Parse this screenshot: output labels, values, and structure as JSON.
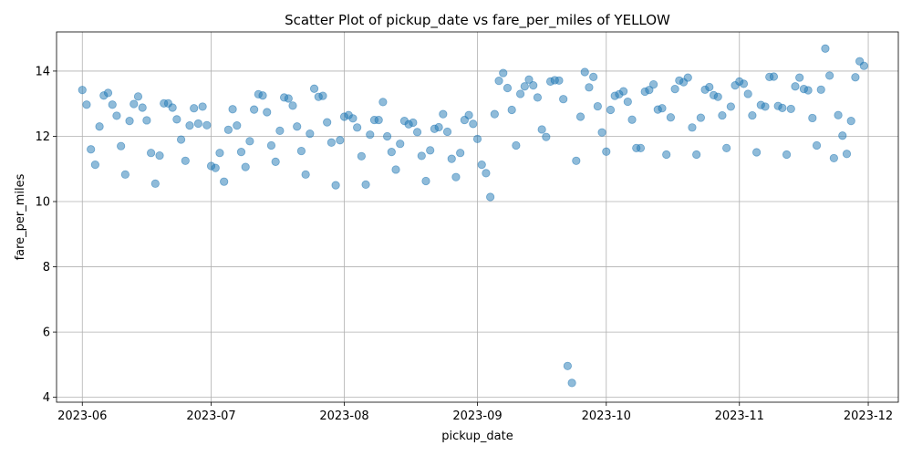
{
  "chart_data": {
    "type": "scatter",
    "title": "Scatter Plot of pickup_date vs fare_per_miles of YELLOW",
    "xlabel": "pickup_date",
    "ylabel": "fare_per_miles",
    "xlim": [
      "2023-05-26",
      "2023-12-08"
    ],
    "ylim": [
      3.85,
      15.2
    ],
    "grid": true,
    "x_ticks": [
      "2023-06-01",
      "2023-07-01",
      "2023-08-01",
      "2023-09-01",
      "2023-10-01",
      "2023-11-01",
      "2023-12-01"
    ],
    "x_tick_labels": [
      "2023-06",
      "2023-07",
      "2023-08",
      "2023-09",
      "2023-10",
      "2023-11",
      "2023-12"
    ],
    "y_ticks": [
      4,
      6,
      8,
      10,
      12,
      14
    ],
    "y_tick_labels": [
      "4",
      "6",
      "8",
      "10",
      "12",
      "14"
    ],
    "marker_color": "#1f77b4",
    "points": [
      [
        "2023-06-01",
        13.42
      ],
      [
        "2023-06-02",
        12.97
      ],
      [
        "2023-06-03",
        11.6
      ],
      [
        "2023-06-04",
        11.13
      ],
      [
        "2023-06-05",
        12.3
      ],
      [
        "2023-06-06",
        13.25
      ],
      [
        "2023-06-07",
        13.33
      ],
      [
        "2023-06-08",
        12.97
      ],
      [
        "2023-06-09",
        12.63
      ],
      [
        "2023-06-10",
        11.7
      ],
      [
        "2023-06-11",
        10.83
      ],
      [
        "2023-06-12",
        12.47
      ],
      [
        "2023-06-13",
        12.99
      ],
      [
        "2023-06-14",
        13.22
      ],
      [
        "2023-06-15",
        12.88
      ],
      [
        "2023-06-16",
        12.49
      ],
      [
        "2023-06-17",
        11.49
      ],
      [
        "2023-06-18",
        10.55
      ],
      [
        "2023-06-19",
        11.41
      ],
      [
        "2023-06-20",
        13.01
      ],
      [
        "2023-06-21",
        13.01
      ],
      [
        "2023-06-22",
        12.88
      ],
      [
        "2023-06-23",
        12.52
      ],
      [
        "2023-06-24",
        11.9
      ],
      [
        "2023-06-25",
        11.25
      ],
      [
        "2023-06-26",
        12.33
      ],
      [
        "2023-06-27",
        12.86
      ],
      [
        "2023-06-28",
        12.39
      ],
      [
        "2023-06-29",
        12.91
      ],
      [
        "2023-06-30",
        12.34
      ],
      [
        "2023-07-01",
        11.09
      ],
      [
        "2023-07-02",
        11.03
      ],
      [
        "2023-07-03",
        11.49
      ],
      [
        "2023-07-04",
        10.61
      ],
      [
        "2023-07-05",
        12.2
      ],
      [
        "2023-07-06",
        12.83
      ],
      [
        "2023-07-07",
        12.33
      ],
      [
        "2023-07-08",
        11.52
      ],
      [
        "2023-07-09",
        11.06
      ],
      [
        "2023-07-10",
        11.85
      ],
      [
        "2023-07-11",
        12.82
      ],
      [
        "2023-07-12",
        13.29
      ],
      [
        "2023-07-13",
        13.25
      ],
      [
        "2023-07-14",
        12.74
      ],
      [
        "2023-07-15",
        11.72
      ],
      [
        "2023-07-16",
        11.22
      ],
      [
        "2023-07-17",
        12.17
      ],
      [
        "2023-07-18",
        13.19
      ],
      [
        "2023-07-19",
        13.16
      ],
      [
        "2023-07-20",
        12.94
      ],
      [
        "2023-07-21",
        12.3
      ],
      [
        "2023-07-22",
        11.55
      ],
      [
        "2023-07-23",
        10.83
      ],
      [
        "2023-07-24",
        12.08
      ],
      [
        "2023-07-25",
        13.46
      ],
      [
        "2023-07-26",
        13.21
      ],
      [
        "2023-07-27",
        13.24
      ],
      [
        "2023-07-28",
        12.43
      ],
      [
        "2023-07-29",
        11.81
      ],
      [
        "2023-07-30",
        10.5
      ],
      [
        "2023-07-31",
        11.88
      ],
      [
        "2023-08-01",
        12.6
      ],
      [
        "2023-08-02",
        12.65
      ],
      [
        "2023-08-03",
        12.55
      ],
      [
        "2023-08-04",
        12.27
      ],
      [
        "2023-08-05",
        11.39
      ],
      [
        "2023-08-06",
        10.52
      ],
      [
        "2023-08-07",
        12.05
      ],
      [
        "2023-08-08",
        12.5
      ],
      [
        "2023-08-09",
        12.5
      ],
      [
        "2023-08-10",
        13.05
      ],
      [
        "2023-08-11",
        12.0
      ],
      [
        "2023-08-12",
        11.52
      ],
      [
        "2023-08-13",
        10.98
      ],
      [
        "2023-08-14",
        11.77
      ],
      [
        "2023-08-15",
        12.47
      ],
      [
        "2023-08-16",
        12.37
      ],
      [
        "2023-08-17",
        12.42
      ],
      [
        "2023-08-18",
        12.13
      ],
      [
        "2023-08-19",
        11.4
      ],
      [
        "2023-08-20",
        10.63
      ],
      [
        "2023-08-21",
        11.57
      ],
      [
        "2023-08-22",
        12.23
      ],
      [
        "2023-08-23",
        12.28
      ],
      [
        "2023-08-24",
        12.68
      ],
      [
        "2023-08-25",
        12.14
      ],
      [
        "2023-08-26",
        11.31
      ],
      [
        "2023-08-27",
        10.75
      ],
      [
        "2023-08-28",
        11.49
      ],
      [
        "2023-08-29",
        12.5
      ],
      [
        "2023-08-30",
        12.65
      ],
      [
        "2023-08-31",
        12.38
      ],
      [
        "2023-09-01",
        11.92
      ],
      [
        "2023-09-02",
        11.13
      ],
      [
        "2023-09-03",
        10.87
      ],
      [
        "2023-09-04",
        10.14
      ],
      [
        "2023-09-05",
        12.68
      ],
      [
        "2023-09-06",
        13.7
      ],
      [
        "2023-09-07",
        13.94
      ],
      [
        "2023-09-08",
        13.48
      ],
      [
        "2023-09-09",
        12.81
      ],
      [
        "2023-09-10",
        11.72
      ],
      [
        "2023-09-11",
        13.3
      ],
      [
        "2023-09-12",
        13.53
      ],
      [
        "2023-09-13",
        13.74
      ],
      [
        "2023-09-14",
        13.56
      ],
      [
        "2023-09-15",
        13.19
      ],
      [
        "2023-09-16",
        12.21
      ],
      [
        "2023-09-17",
        11.98
      ],
      [
        "2023-09-18",
        13.68
      ],
      [
        "2023-09-19",
        13.72
      ],
      [
        "2023-09-20",
        13.71
      ],
      [
        "2023-09-21",
        13.14
      ],
      [
        "2023-09-22",
        4.96
      ],
      [
        "2023-09-23",
        4.44
      ],
      [
        "2023-09-24",
        11.25
      ],
      [
        "2023-09-25",
        12.6
      ],
      [
        "2023-09-26",
        13.97
      ],
      [
        "2023-09-27",
        13.5
      ],
      [
        "2023-09-28",
        13.82
      ],
      [
        "2023-09-29",
        12.92
      ],
      [
        "2023-09-30",
        12.12
      ],
      [
        "2023-10-01",
        11.53
      ],
      [
        "2023-10-02",
        12.81
      ],
      [
        "2023-10-03",
        13.24
      ],
      [
        "2023-10-04",
        13.29
      ],
      [
        "2023-10-05",
        13.38
      ],
      [
        "2023-10-06",
        13.06
      ],
      [
        "2023-10-07",
        12.51
      ],
      [
        "2023-10-08",
        11.64
      ],
      [
        "2023-10-09",
        11.64
      ],
      [
        "2023-10-10",
        13.37
      ],
      [
        "2023-10-11",
        13.42
      ],
      [
        "2023-10-12",
        13.59
      ],
      [
        "2023-10-13",
        12.82
      ],
      [
        "2023-10-14",
        12.86
      ],
      [
        "2023-10-15",
        11.44
      ],
      [
        "2023-10-16",
        12.58
      ],
      [
        "2023-10-17",
        13.45
      ],
      [
        "2023-10-18",
        13.71
      ],
      [
        "2023-10-19",
        13.66
      ],
      [
        "2023-10-20",
        13.8
      ],
      [
        "2023-10-21",
        12.27
      ],
      [
        "2023-10-22",
        11.44
      ],
      [
        "2023-10-23",
        12.57
      ],
      [
        "2023-10-24",
        13.43
      ],
      [
        "2023-10-25",
        13.51
      ],
      [
        "2023-10-26",
        13.26
      ],
      [
        "2023-10-27",
        13.21
      ],
      [
        "2023-10-28",
        12.64
      ],
      [
        "2023-10-29",
        11.64
      ],
      [
        "2023-10-30",
        12.91
      ],
      [
        "2023-10-31",
        13.56
      ],
      [
        "2023-11-01",
        13.68
      ],
      [
        "2023-11-02",
        13.61
      ],
      [
        "2023-11-03",
        13.3
      ],
      [
        "2023-11-04",
        12.64
      ],
      [
        "2023-11-05",
        11.51
      ],
      [
        "2023-11-06",
        12.96
      ],
      [
        "2023-11-07",
        12.91
      ],
      [
        "2023-11-08",
        13.82
      ],
      [
        "2023-11-09",
        13.83
      ],
      [
        "2023-11-10",
        12.93
      ],
      [
        "2023-11-11",
        12.87
      ],
      [
        "2023-11-12",
        11.44
      ],
      [
        "2023-11-13",
        12.84
      ],
      [
        "2023-11-14",
        13.53
      ],
      [
        "2023-11-15",
        13.8
      ],
      [
        "2023-11-16",
        13.45
      ],
      [
        "2023-11-17",
        13.41
      ],
      [
        "2023-11-18",
        12.56
      ],
      [
        "2023-11-19",
        11.72
      ],
      [
        "2023-11-20",
        13.43
      ],
      [
        "2023-11-21",
        14.69
      ],
      [
        "2023-11-22",
        13.86
      ],
      [
        "2023-11-23",
        11.33
      ],
      [
        "2023-11-24",
        12.65
      ],
      [
        "2023-11-25",
        12.02
      ],
      [
        "2023-11-26",
        11.46
      ],
      [
        "2023-11-27",
        12.47
      ],
      [
        "2023-11-28",
        13.81
      ],
      [
        "2023-11-29",
        14.3
      ],
      [
        "2023-11-30",
        14.16
      ]
    ]
  }
}
